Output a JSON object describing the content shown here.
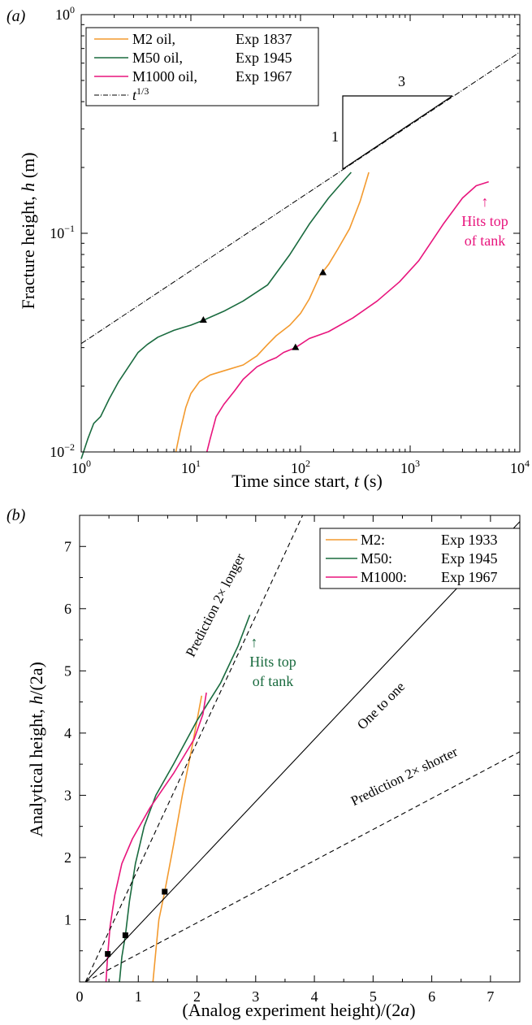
{
  "colors": {
    "m2": "#f39a2e",
    "m50": "#1a6b3f",
    "m1000": "#e8157d",
    "ink": "#000000"
  },
  "panel_a": {
    "tag": "(a)",
    "annotation_hits_top": [
      "↑",
      "Hits top",
      "of tank"
    ],
    "slope_triangle": {
      "rise_label": "1",
      "run_label": "3"
    }
  },
  "panel_b": {
    "tag": "(b)",
    "annotation_hits_top": [
      "↑",
      "Hits top",
      "of tank"
    ],
    "line_labels": {
      "one_to_one": "One to one",
      "longer": "Prediction 2× longer",
      "shorter": "Prediction 2× shorter"
    }
  },
  "chart_data": [
    {
      "type": "line",
      "xlabel_pre": "Time since start, ",
      "xlabel_var": "t",
      "xlabel_post": " (s)",
      "ylabel_pre": "Fracture height, ",
      "ylabel_var": "h",
      "ylabel_post": " (m)",
      "xscale": "log",
      "yscale": "log",
      "xlim": [
        1,
        10000
      ],
      "ylim": [
        0.01,
        1
      ],
      "xticks": [
        1,
        10,
        100,
        1000,
        10000
      ],
      "xtick_exps": [
        "0",
        "1",
        "2",
        "3",
        "4"
      ],
      "yticks": [
        0.01,
        0.1,
        1
      ],
      "ytick_exps": [
        "−2",
        "−1",
        "0"
      ],
      "tick_base": "10",
      "legend_position": "top-left",
      "legend": [
        {
          "name": "M2 oil,",
          "exp": "Exp 1837",
          "color": "#f39a2e",
          "style": "solid"
        },
        {
          "name": "M50 oil,",
          "exp": "Exp 1945",
          "color": "#1a6b3f",
          "style": "solid"
        },
        {
          "name": "M1000 oil,",
          "exp": "Exp 1967",
          "color": "#e8157d",
          "style": "solid"
        },
        {
          "name": "t",
          "sup": "1/3",
          "exp": "",
          "color": "#000000",
          "style": "dashdot"
        }
      ],
      "series": [
        {
          "name": "M2 oil, Exp 1837",
          "color": "#f39a2e",
          "x": [
            7.3,
            8,
            9,
            10,
            12,
            15,
            20,
            30,
            40,
            50,
            60,
            80,
            100,
            120,
            150,
            180,
            220,
            280,
            350,
            420
          ],
          "y": [
            0.01,
            0.0125,
            0.016,
            0.0185,
            0.021,
            0.0225,
            0.0235,
            0.025,
            0.0275,
            0.031,
            0.034,
            0.038,
            0.043,
            0.05,
            0.064,
            0.072,
            0.085,
            0.105,
            0.14,
            0.19
          ],
          "marker": {
            "x": 160,
            "y": 0.066
          }
        },
        {
          "name": "M50 oil, Exp 1945",
          "color": "#1a6b3f",
          "x": [
            1,
            1.15,
            1.3,
            1.5,
            1.8,
            2.2,
            2.7,
            3.3,
            4,
            5,
            7,
            10,
            13,
            20,
            30,
            50,
            80,
            120,
            180,
            250,
            290
          ],
          "y": [
            0.0093,
            0.0115,
            0.0135,
            0.0145,
            0.0175,
            0.021,
            0.0245,
            0.0285,
            0.031,
            0.0335,
            0.036,
            0.038,
            0.04,
            0.044,
            0.049,
            0.058,
            0.08,
            0.11,
            0.145,
            0.175,
            0.19
          ],
          "marker": {
            "x": 13,
            "y": 0.04
          }
        },
        {
          "name": "M1000 oil, Exp 1967",
          "color": "#e8157d",
          "x": [
            14,
            15,
            17,
            20,
            25,
            30,
            40,
            50,
            60,
            70,
            90,
            120,
            180,
            300,
            500,
            800,
            1200,
            2000,
            3000,
            4000,
            5200
          ],
          "y": [
            0.01,
            0.0115,
            0.0145,
            0.0165,
            0.019,
            0.0215,
            0.0245,
            0.026,
            0.027,
            0.0285,
            0.03,
            0.033,
            0.0355,
            0.041,
            0.049,
            0.06,
            0.075,
            0.11,
            0.145,
            0.165,
            0.172
          ],
          "marker": {
            "x": 90,
            "y": 0.03
          }
        },
        {
          "name": "t^1/3",
          "color": "#000000",
          "style": "dashdot",
          "x": [
            1,
            10000
          ],
          "y": [
            0.0313,
            0.674
          ]
        }
      ]
    },
    {
      "type": "line",
      "xlabel_pre": "(Analog experiment height)/(2",
      "xlabel_var": "a",
      "xlabel_post": ")",
      "ylabel_pre": "Analytical height, ",
      "ylabel_var": "h",
      "ylabel_post": "/(2a)",
      "xlim": [
        0,
        7.5
      ],
      "ylim": [
        0,
        7.5
      ],
      "xticks": [
        0,
        1,
        2,
        3,
        4,
        5,
        6,
        7
      ],
      "xtick_labels": [
        "0",
        "1",
        "2",
        "3",
        "4",
        "5",
        "6",
        "7"
      ],
      "yticks": [
        1,
        2,
        3,
        4,
        5,
        6,
        7
      ],
      "ytick_labels": [
        "1",
        "2",
        "3",
        "4",
        "5",
        "6",
        "7"
      ],
      "legend_position": "top-right",
      "legend": [
        {
          "name": "M2:",
          "exp": "Exp 1933",
          "color": "#f39a2e"
        },
        {
          "name": "M50:",
          "exp": "Exp 1945",
          "color": "#1a6b3f"
        },
        {
          "name": "M1000:",
          "exp": "Exp 1967",
          "color": "#e8157d"
        }
      ],
      "series": [
        {
          "name": "M2: Exp 1933",
          "color": "#f39a2e",
          "x": [
            1.25,
            1.3,
            1.35,
            1.45,
            1.6,
            1.75,
            1.9,
            2.0,
            2.05,
            2.08
          ],
          "y": [
            0,
            0.5,
            1.0,
            1.45,
            2.2,
            3.0,
            3.7,
            4.2,
            4.45,
            4.6
          ],
          "marker": {
            "x": 1.45,
            "y": 1.45
          }
        },
        {
          "name": "M50: Exp 1945",
          "color": "#1a6b3f",
          "x": [
            0.68,
            0.72,
            0.78,
            0.85,
            0.95,
            1.1,
            1.3,
            1.6,
            2.0,
            2.4,
            2.7,
            2.9
          ],
          "y": [
            0,
            0.4,
            0.75,
            1.3,
            1.9,
            2.5,
            3.0,
            3.5,
            4.2,
            4.8,
            5.4,
            5.9
          ],
          "marker": {
            "x": 0.78,
            "y": 0.75
          }
        },
        {
          "name": "M1000: Exp 1967",
          "color": "#e8157d",
          "x": [
            0.45,
            0.48,
            0.52,
            0.6,
            0.72,
            0.9,
            1.2,
            1.6,
            1.95,
            2.1,
            2.16
          ],
          "y": [
            0,
            0.45,
            0.9,
            1.4,
            1.9,
            2.3,
            2.8,
            3.35,
            3.9,
            4.3,
            4.65
          ],
          "marker": {
            "x": 0.48,
            "y": 0.45
          }
        },
        {
          "name": "One to one",
          "color": "#000000",
          "style": "solid",
          "x": [
            0.1,
            7.5
          ],
          "y": [
            0,
            7.4
          ]
        },
        {
          "name": "Prediction 2× longer",
          "color": "#000000",
          "style": "dashed",
          "x": [
            0.1,
            3.8
          ],
          "y": [
            0,
            7.5
          ]
        },
        {
          "name": "Prediction 2× shorter",
          "color": "#000000",
          "style": "dashed",
          "x": [
            0.1,
            7.5
          ],
          "y": [
            0,
            3.7
          ]
        }
      ]
    }
  ]
}
